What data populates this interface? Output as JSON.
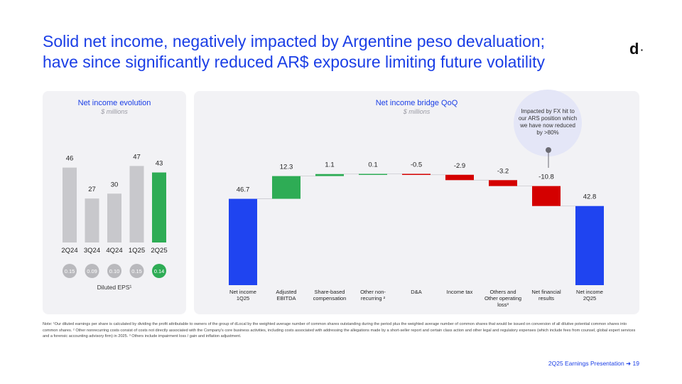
{
  "header": {
    "title_line1": "Solid net income, negatively impacted by Argentine peso devaluation;",
    "title_line2": "have since significantly reduced AR$ exposure limiting future volatility",
    "logo": "d"
  },
  "chart_data": [
    {
      "type": "bar",
      "title": "Net income evolution",
      "subtitle": "$ millions",
      "categories": [
        "2Q24",
        "3Q24",
        "4Q24",
        "1Q25",
        "2Q25"
      ],
      "values": [
        46,
        27,
        30,
        47,
        43
      ],
      "value_labels": [
        "46",
        "27",
        "30",
        "47",
        "43"
      ],
      "highlight_index": 4,
      "eps_values": [
        "0.15",
        "0.09",
        "0.10",
        "0.15",
        "0.14"
      ],
      "eps_label": "Diluted EPS¹",
      "colors": {
        "bar": "#c8c8cc",
        "highlight": "#2eac55",
        "eps": "#b9b9bd"
      }
    },
    {
      "type": "waterfall",
      "title": "Net income bridge QoQ",
      "subtitle": "$ millions",
      "categories": [
        {
          "line1": "Net income",
          "line2": "1Q25",
          "line3": ""
        },
        {
          "line1": "Adjusted",
          "line2": "EBITDA",
          "line3": ""
        },
        {
          "line1": "Share-based",
          "line2": "compensation",
          "line3": ""
        },
        {
          "line1": "Other non-",
          "line2": "recurring ²",
          "line3": ""
        },
        {
          "line1": "D&A",
          "line2": "",
          "line3": ""
        },
        {
          "line1": "Income tax",
          "line2": "",
          "line3": ""
        },
        {
          "line1": "Others and",
          "line2": "Other operating",
          "line3": "loss³"
        },
        {
          "line1": "Net financial",
          "line2": "results",
          "line3": ""
        },
        {
          "line1": "Net income",
          "line2": "2Q25",
          "line3": ""
        }
      ],
      "values": [
        46.7,
        12.3,
        1.1,
        0.1,
        -0.5,
        -2.9,
        -3.2,
        -10.8,
        42.8
      ],
      "value_labels": [
        "46.7",
        "12.3",
        "1.1",
        "0.1",
        "-0.5",
        "-2.9",
        "-3.2",
        "-10.8",
        "42.8"
      ],
      "kinds": [
        "total",
        "delta",
        "delta",
        "delta",
        "delta",
        "delta",
        "delta",
        "delta",
        "total"
      ],
      "colors": {
        "total": "#1f44f0",
        "up": "#2eac55",
        "down": "#d40000"
      }
    }
  ],
  "callout": {
    "text": "Impacted by FX hit to our ARS position which we have now reduced by >80%"
  },
  "note": "Note: ¹Our diluted earnings per share is calculated by dividing the profit attributable to owners of the group of dLocal by the weighted average number of common shares outstanding during the period plus the weighted average number of common shares that would be issued on conversion of all dilutive potential common shares into common shares. ² Other nonrecurring costs consist of costs not directly associated with the Company's core business activities, including costs associated with addressing the allegations made by a short-seller report and certain class action and other legal and regulatory expenses (which include fees from counsel, global expert services and a forensic accounting advisory firm) in 2025. ³ Others include impairment loss / gain and inflation adjustment.",
  "footer": "2Q25 Earnings Presentation ➜  19"
}
